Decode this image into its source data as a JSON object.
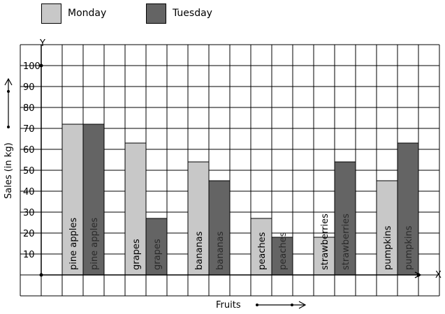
{
  "chart_data": {
    "type": "bar",
    "categories": [
      "pine apples",
      "grapes",
      "bananas",
      "peaches",
      "strawberries",
      "pumpkins"
    ],
    "series": [
      {
        "name": "Monday",
        "values": [
          72,
          63,
          54,
          27,
          18,
          45
        ],
        "color": "#c8c8c8"
      },
      {
        "name": "Tuesday",
        "values": [
          72,
          27,
          45,
          18,
          54,
          63
        ],
        "color": "#646464"
      }
    ],
    "ylabel": "Sales (in kg)",
    "xlabel": "Fruits",
    "y_axis_letter": "Y",
    "x_axis_letter": "X",
    "yticks": [
      "10",
      "20",
      "30",
      "40",
      "50",
      "60",
      "70",
      "80",
      "90",
      "100"
    ],
    "ylim": [
      0,
      100
    ],
    "grid": true,
    "legend_position": "top-left"
  }
}
